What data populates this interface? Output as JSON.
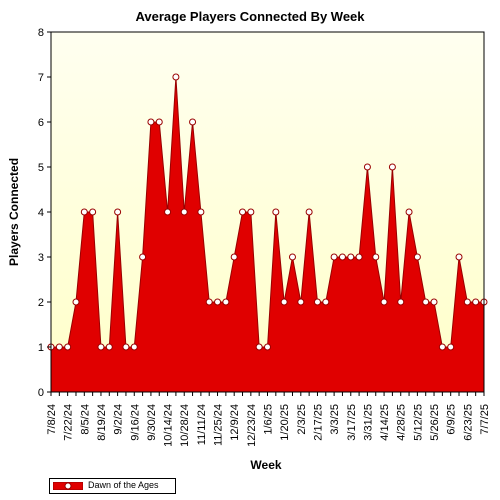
{
  "chart_data": {
    "type": "area",
    "title": "Average Players Connected By Week",
    "xlabel": "Week",
    "ylabel": "Players Connected",
    "ylim": [
      0,
      8
    ],
    "yticks": [
      0,
      1,
      2,
      3,
      4,
      5,
      6,
      7,
      8
    ],
    "grid": false,
    "legend_position": "bottom-left",
    "colors": {
      "fill": "#e00000",
      "line": "#990000",
      "plot_bg_top": "#fffff0",
      "plot_bg_bottom": "#ffffc8"
    },
    "x_tick_labels": [
      "7/8/24",
      "7/22/24",
      "8/5/24",
      "8/19/24",
      "9/2/24",
      "9/16/24",
      "9/30/24",
      "10/14/24",
      "10/28/24",
      "11/11/24",
      "11/25/24",
      "12/9/24",
      "12/23/24",
      "1/6/25",
      "1/20/25",
      "2/3/25",
      "2/17/25",
      "3/3/25",
      "3/17/25",
      "3/31/25",
      "4/14/25",
      "4/28/25",
      "5/12/25",
      "5/26/25",
      "6/9/25",
      "6/23/25",
      "7/7/25"
    ],
    "series": [
      {
        "name": "Dawn of the Ages",
        "x": [
          "7/8/24",
          "7/15/24",
          "7/22/24",
          "7/29/24",
          "8/5/24",
          "8/12/24",
          "8/19/24",
          "8/26/24",
          "9/2/24",
          "9/9/24",
          "9/16/24",
          "9/23/24",
          "9/30/24",
          "10/7/24",
          "10/14/24",
          "10/21/24",
          "10/28/24",
          "11/4/24",
          "11/11/24",
          "11/18/24",
          "11/25/24",
          "12/2/24",
          "12/9/24",
          "12/16/24",
          "12/23/24",
          "12/30/24",
          "1/6/25",
          "1/13/25",
          "1/20/25",
          "1/27/25",
          "2/3/25",
          "2/10/25",
          "2/17/25",
          "2/24/25",
          "3/3/25",
          "3/10/25",
          "3/17/25",
          "3/24/25",
          "3/31/25",
          "4/7/25",
          "4/14/25",
          "4/21/25",
          "4/28/25",
          "5/5/25",
          "5/12/25",
          "5/19/25",
          "5/26/25",
          "6/2/25",
          "6/9/25",
          "6/16/25",
          "6/23/25",
          "6/30/25",
          "7/7/25"
        ],
        "values": [
          1,
          1,
          1,
          2,
          4,
          4,
          1,
          1,
          4,
          1,
          1,
          3,
          6,
          6,
          4,
          7,
          4,
          6,
          4,
          2,
          2,
          2,
          3,
          4,
          4,
          1,
          1,
          4,
          2,
          3,
          2,
          4,
          2,
          2,
          3,
          3,
          3,
          3,
          5,
          3,
          2,
          5,
          2,
          4,
          3,
          2,
          2,
          1,
          1,
          3,
          2,
          2,
          2
        ]
      }
    ]
  }
}
